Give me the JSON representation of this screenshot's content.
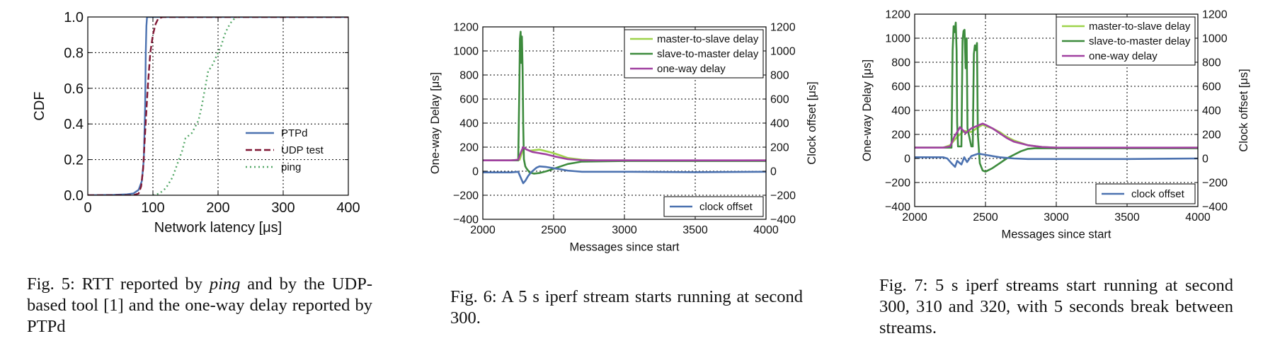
{
  "chart_data": [
    {
      "type": "line",
      "title": "",
      "xlabel": "Network latency [μs]",
      "ylabel": "CDF",
      "xlim": [
        0,
        400
      ],
      "ylim": [
        0,
        1
      ],
      "xticks": [
        0,
        100,
        200,
        300,
        400
      ],
      "yticks": [
        0.0,
        0.2,
        0.4,
        0.6,
        0.8,
        1.0
      ],
      "ytick_labels": [
        "0.0",
        "0.2",
        "0.4",
        "0.6",
        "0.8",
        "1.0"
      ],
      "grid": true,
      "legend_position": "lower-right",
      "series": [
        {
          "name": "PTPd",
          "color": "#4c72b0",
          "style": "solid",
          "x": [
            0,
            40,
            60,
            70,
            78,
            83,
            86,
            88,
            89,
            90,
            91,
            400
          ],
          "y": [
            0,
            0.002,
            0.005,
            0.01,
            0.03,
            0.08,
            0.2,
            0.5,
            0.8,
            0.95,
            1.0,
            1.0
          ]
        },
        {
          "name": "UDP test",
          "color": "#7f1734",
          "style": "dashed",
          "x": [
            0,
            70,
            78,
            82,
            85,
            88,
            92,
            96,
            100,
            104,
            108,
            115,
            400
          ],
          "y": [
            0,
            0.0,
            0.01,
            0.05,
            0.15,
            0.35,
            0.6,
            0.8,
            0.9,
            0.96,
            0.99,
            1.0,
            1.0
          ]
        },
        {
          "name": "ping",
          "color": "#55a868",
          "style": "dotted",
          "x": [
            100,
            110,
            120,
            130,
            140,
            145,
            150,
            160,
            170,
            175,
            180,
            185,
            190,
            195,
            200,
            205,
            210,
            215,
            220,
            225,
            230
          ],
          "y": [
            0.0,
            0.01,
            0.04,
            0.1,
            0.2,
            0.25,
            0.32,
            0.35,
            0.42,
            0.5,
            0.6,
            0.7,
            0.72,
            0.76,
            0.8,
            0.84,
            0.9,
            0.94,
            0.97,
            0.99,
            1.0
          ]
        }
      ],
      "caption": {
        "prefix": "Fig. 5: RTT reported by ",
        "italic": "ping",
        "suffix": " and by the UDP-based tool [1] and the one-way delay reported by PTPd"
      }
    },
    {
      "type": "line",
      "title": "",
      "xlabel": "Messages since start",
      "ylabel": "One-way Delay [μs]",
      "ylabel_right": "Clock offset [μs]",
      "xlim": [
        2000,
        4000
      ],
      "ylim": [
        -400,
        1200
      ],
      "xticks": [
        2000,
        2500,
        3000,
        3500,
        4000
      ],
      "yticks": [
        -400,
        -200,
        0,
        200,
        400,
        600,
        800,
        1000,
        1200
      ],
      "ytick_labels": [
        "−400",
        "−200",
        "0",
        "200",
        "400",
        "600",
        "800",
        "1000",
        "1200"
      ],
      "grid": true,
      "legend_position": "upper-right",
      "legend2_position": "lower-right",
      "series": [
        {
          "name": "master-to-slave delay",
          "color": "#9ed34a",
          "x": [
            2000,
            2200,
            2260,
            2275,
            2285,
            2300,
            2330,
            2360,
            2400,
            2450,
            2500,
            2550,
            2600,
            2700,
            2800,
            3000,
            3500,
            4000
          ],
          "y": [
            90,
            90,
            95,
            150,
            190,
            185,
            170,
            175,
            180,
            165,
            150,
            130,
            110,
            95,
            90,
            90,
            88,
            90
          ]
        },
        {
          "name": "slave-to-master delay",
          "color": "#3d8b3d",
          "x": [
            2000,
            2200,
            2250,
            2258,
            2262,
            2267,
            2272,
            2276,
            2281,
            2285,
            2290,
            2300,
            2310,
            2330,
            2360,
            2400,
            2450,
            2500,
            2550,
            2600,
            2650,
            2700,
            3000,
            3500,
            4000
          ],
          "y": [
            90,
            90,
            90,
            700,
            1100,
            1160,
            900,
            1120,
            850,
            400,
            100,
            40,
            20,
            -10,
            -20,
            -15,
            0,
            20,
            40,
            60,
            70,
            80,
            85,
            85,
            85
          ]
        },
        {
          "name": "one-way delay",
          "color": "#a040a0",
          "x": [
            2000,
            2200,
            2250,
            2270,
            2285,
            2310,
            2350,
            2400,
            2450,
            2500,
            2550,
            2600,
            2700,
            2800,
            3000,
            3500,
            4000
          ],
          "y": [
            90,
            90,
            95,
            160,
            200,
            180,
            160,
            150,
            140,
            125,
            112,
            100,
            92,
            90,
            90,
            90,
            90
          ]
        },
        {
          "name": "clock offset",
          "color": "#4c72b0",
          "x": [
            2000,
            2200,
            2250,
            2270,
            2285,
            2300,
            2320,
            2340,
            2360,
            2380,
            2400,
            2450,
            2500,
            2550,
            2600,
            2650,
            2700,
            2800,
            3000,
            3500,
            4000
          ],
          "y": [
            -10,
            -10,
            -5,
            -60,
            -100,
            -80,
            -40,
            -10,
            10,
            30,
            40,
            35,
            25,
            15,
            5,
            0,
            -5,
            -5,
            -5,
            -8,
            -5
          ]
        }
      ],
      "caption": {
        "prefix": "Fig. 6: A 5 s iperf stream starts running at second 300.",
        "italic": "",
        "suffix": ""
      }
    },
    {
      "type": "line",
      "title": "",
      "xlabel": "Messages since start",
      "ylabel": "One-way Delay [μs]",
      "ylabel_right": "Clock offset [μs]",
      "xlim": [
        2000,
        4000
      ],
      "ylim": [
        -400,
        1200
      ],
      "xticks": [
        2000,
        2500,
        3000,
        3500,
        4000
      ],
      "yticks": [
        -400,
        -200,
        0,
        200,
        400,
        600,
        800,
        1000,
        1200
      ],
      "ytick_labels": [
        "−400",
        "−200",
        "0",
        "200",
        "400",
        "600",
        "800",
        "1000",
        "1200"
      ],
      "grid": true,
      "legend_position": "upper-right",
      "legend2_position": "lower-right",
      "series": [
        {
          "name": "master-to-slave delay",
          "color": "#9ed34a",
          "x": [
            2000,
            2200,
            2250,
            2300,
            2350,
            2400,
            2450,
            2480,
            2500,
            2550,
            2600,
            2650,
            2700,
            2800,
            2900,
            3000,
            3500,
            4000
          ],
          "y": [
            90,
            90,
            110,
            180,
            230,
            220,
            260,
            280,
            270,
            250,
            220,
            180,
            150,
            110,
            95,
            90,
            88,
            90
          ]
        },
        {
          "name": "slave-to-master delay",
          "color": "#3d8b3d",
          "x": [
            2000,
            2200,
            2260,
            2268,
            2275,
            2283,
            2290,
            2296,
            2300,
            2306,
            2330,
            2338,
            2345,
            2352,
            2360,
            2367,
            2373,
            2400,
            2410,
            2418,
            2425,
            2432,
            2440,
            2446,
            2460,
            2480,
            2500,
            2550,
            2600,
            2650,
            2700,
            2750,
            2800,
            2850,
            3000,
            3500,
            4000
          ],
          "y": [
            90,
            90,
            90,
            900,
            1100,
            1050,
            1130,
            900,
            300,
            100,
            100,
            980,
            1060,
            1070,
            750,
            1000,
            250,
            100,
            100,
            870,
            940,
            900,
            960,
            200,
            -40,
            -100,
            -110,
            -80,
            -40,
            0,
            30,
            60,
            80,
            85,
            85,
            85,
            85
          ]
        },
        {
          "name": "one-way delay",
          "color": "#a040a0",
          "x": [
            2000,
            2200,
            2250,
            2280,
            2320,
            2360,
            2400,
            2440,
            2480,
            2500,
            2550,
            2600,
            2650,
            2700,
            2800,
            2900,
            3000,
            3500,
            4000
          ],
          "y": [
            90,
            90,
            100,
            180,
            260,
            210,
            250,
            270,
            290,
            280,
            250,
            210,
            170,
            140,
            110,
            95,
            90,
            90,
            90
          ]
        },
        {
          "name": "clock offset",
          "color": "#4c72b0",
          "x": [
            2000,
            2200,
            2230,
            2260,
            2285,
            2300,
            2330,
            2350,
            2370,
            2400,
            2450,
            2500,
            2550,
            2600,
            2700,
            2800,
            3000,
            3500,
            4000
          ],
          "y": [
            10,
            10,
            0,
            -40,
            -70,
            -20,
            -50,
            10,
            -30,
            20,
            40,
            30,
            20,
            10,
            0,
            -5,
            -5,
            -5,
            0
          ]
        }
      ],
      "caption": {
        "prefix": "Fig. 7: 5 s iperf streams start running at second 300, 310 and 320, with 5 seconds break between streams.",
        "italic": "",
        "suffix": ""
      }
    }
  ]
}
